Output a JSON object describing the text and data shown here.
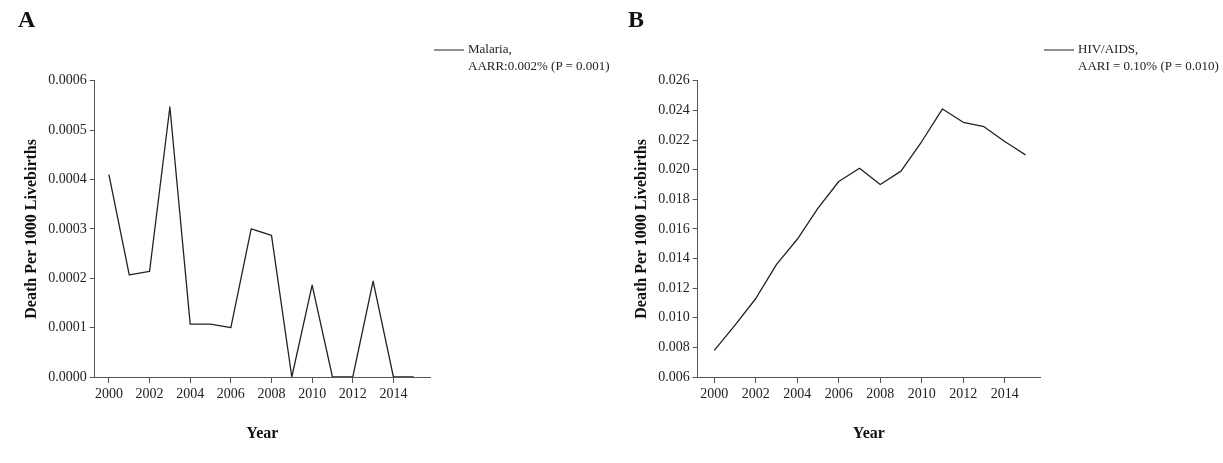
{
  "chart_data": [
    {
      "type": "line",
      "title": "A",
      "xlabel": "Year",
      "ylabel": "Death Per 1000 Livebirths",
      "x": [
        2000,
        2001,
        2002,
        2003,
        2004,
        2005,
        2006,
        2007,
        2008,
        2009,
        2010,
        2011,
        2012,
        2013,
        2014,
        2015
      ],
      "series": [
        {
          "name": "Malaria,\nAARR:0.002% (P = 0.001)",
          "color": "#222222",
          "values": [
            0.00041,
            0.000207,
            0.000214,
            0.000547,
            0.000107,
            0.000107,
            0.0001,
            0.0003,
            0.000287,
            0,
            0.000186,
            0,
            0,
            0.000194,
            0,
            0
          ]
        }
      ],
      "xlim": [
        1999.3,
        2015.8
      ],
      "xticks": [
        2000,
        2002,
        2004,
        2006,
        2008,
        2010,
        2012,
        2014
      ],
      "ylim": [
        0,
        0.0006
      ],
      "yticks": [
        {
          "value": 0,
          "label": "0.0000"
        },
        {
          "value": 0.0001,
          "label": "0.0001"
        },
        {
          "value": 0.0002,
          "label": "0.0002"
        },
        {
          "value": 0.0003,
          "label": "0.0003"
        },
        {
          "value": 0.0004,
          "label": "0.0004"
        },
        {
          "value": 0.0005,
          "label": "0.0005"
        },
        {
          "value": 0.0006,
          "label": "0.0006"
        }
      ],
      "grid": false,
      "legend": "top right",
      "marker": "none",
      "line_style": "solid"
    },
    {
      "type": "line",
      "title": "B",
      "xlabel": "Year",
      "ylabel": "Death Per 1000 Livebirths",
      "x": [
        2000,
        2001,
        2002,
        2003,
        2004,
        2005,
        2006,
        2007,
        2008,
        2009,
        2010,
        2011,
        2012,
        2013,
        2014,
        2015
      ],
      "series": [
        {
          "name": "HIV/AIDS,\nAARI = 0.10% (P = 0.010)",
          "color": "#222222",
          "values": [
            0.0078,
            0.0095,
            0.0113,
            0.0136,
            0.0153,
            0.0174,
            0.0192,
            0.0201,
            0.019,
            0.0199,
            0.0219,
            0.0241,
            0.0232,
            0.0229,
            0.0219,
            0.021
          ]
        }
      ],
      "xlim": [
        1999.2,
        2015.7
      ],
      "xticks": [
        2000,
        2002,
        2004,
        2006,
        2008,
        2010,
        2012,
        2014
      ],
      "ylim": [
        0.006,
        0.026
      ],
      "yticks": [
        {
          "value": 0.006,
          "label": "0.006"
        },
        {
          "value": 0.008,
          "label": "0.008"
        },
        {
          "value": 0.01,
          "label": "0.010"
        },
        {
          "value": 0.012,
          "label": "0.012"
        },
        {
          "value": 0.014,
          "label": "0.014"
        },
        {
          "value": 0.016,
          "label": "0.016"
        },
        {
          "value": 0.018,
          "label": "0.018"
        },
        {
          "value": 0.02,
          "label": "0.020"
        },
        {
          "value": 0.022,
          "label": "0.022"
        },
        {
          "value": 0.024,
          "label": "0.024"
        },
        {
          "value": 0.026,
          "label": "0.026"
        }
      ],
      "grid": false,
      "legend": "top right",
      "marker": "none",
      "line_style": "solid"
    }
  ]
}
